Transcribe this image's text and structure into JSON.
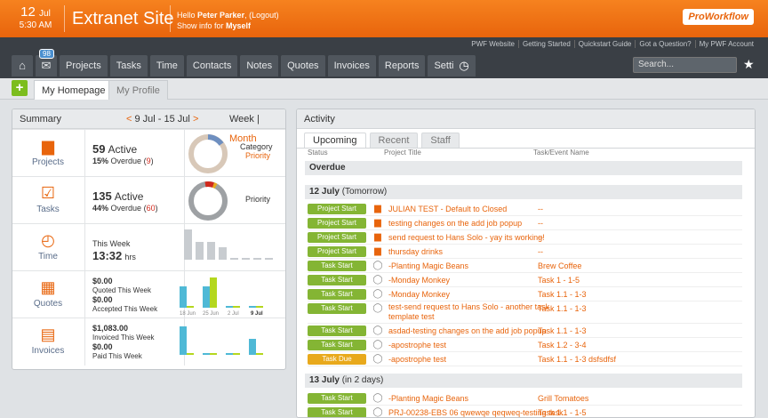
{
  "header": {
    "date_day": "12",
    "date_month": "Jul",
    "time": "5:30 AM",
    "site_title": "Extranet Site",
    "hello": "Hello",
    "user": "Peter Parker",
    "logout": "(Logout)",
    "show_info": "Show info for",
    "show_info_value": "Myself",
    "logo": "ProWorkflow"
  },
  "top_links": [
    "PWF Website",
    "Getting Started",
    "Quickstart Guide",
    "Got a Question?",
    "My PWF Account"
  ],
  "nav": {
    "home": "⌂",
    "mail_badge": "98",
    "items": [
      "Projects",
      "Tasks",
      "Time",
      "Contacts",
      "Notes",
      "Quotes",
      "Invoices",
      "Reports",
      "Settings"
    ],
    "search_placeholder": "Search..."
  },
  "subtabs": [
    "My Homepage",
    "My Profile"
  ],
  "summary": {
    "title": "Summary",
    "range": "9 Jul - 15 Jul",
    "prev": "<",
    "next": ">",
    "week": "Week",
    "month": "Month",
    "projects": {
      "label": "Projects",
      "count": "59",
      "active": "Active",
      "overdue_pct": "15%",
      "overdue_label": "Overdue",
      "overdue_count": "9",
      "donut_label1": "Category",
      "donut_label2": "Priority"
    },
    "tasks": {
      "label": "Tasks",
      "count": "135",
      "active": "Active",
      "overdue_pct": "44%",
      "overdue_label": "Overdue",
      "overdue_count": "60",
      "donut_label1": "Priority"
    },
    "time": {
      "label": "Time",
      "this_week": "This Week",
      "hours": "13:32",
      "unit": "hrs"
    },
    "quotes": {
      "label": "Quotes",
      "quoted": "$0.00",
      "quoted_label": "Quoted This Week",
      "accepted": "$0.00",
      "accepted_label": "Accepted This Week"
    },
    "invoices": {
      "label": "Invoices",
      "invoiced": "$1,083.00",
      "invoiced_label": "Invoiced This Week",
      "paid": "$0.00",
      "paid_label": "Paid This Week"
    },
    "week_labels": [
      "18 Jun",
      "25 Jun",
      "2 Jul",
      "9 Jul"
    ]
  },
  "activity": {
    "title": "Activity",
    "tabs": [
      "Upcoming",
      "Recent",
      "Staff"
    ],
    "cols": {
      "status": "Status",
      "project": "Project Title",
      "task": "Task/Event Name"
    },
    "overdue": "Overdue",
    "group1": "12 July",
    "group1_note": "(Tomorrow)",
    "rows1": [
      {
        "status": "Project Start",
        "type": "folder",
        "title": "JULIAN TEST - Default to Closed",
        "task": "--"
      },
      {
        "status": "Project Start",
        "type": "folder",
        "title": "testing changes on the add job popup",
        "task": "--"
      },
      {
        "status": "Project Start",
        "type": "folder",
        "title": "send request to Hans Solo - yay its working!",
        "task": "--"
      },
      {
        "status": "Project Start",
        "type": "folder",
        "title": "thursday drinks",
        "task": "--"
      },
      {
        "status": "Task Start",
        "type": "circle",
        "title": "-Planting Magic Beans",
        "task": "Brew Coffee"
      },
      {
        "status": "Task Start",
        "type": "circle",
        "title": "-Monday Monkey",
        "task": "Task 1 - 1-5"
      },
      {
        "status": "Task Start",
        "type": "circle",
        "title": "-Monday Monkey",
        "task": "Task 1.1 - 1-3"
      },
      {
        "status": "Task Start",
        "type": "circle",
        "title": "test-send request to Hans Solo - another task",
        "title2": "template test",
        "task": "Task 1.1 - 1-3"
      },
      {
        "status": "Task Start",
        "type": "circle",
        "title": "asdad-testing changes on the add job popup",
        "task": "Task 1.1 - 1-3"
      },
      {
        "status": "Task Start",
        "type": "circle",
        "title": "-apostrophe test",
        "task": "Task 1.2 - 3-4"
      },
      {
        "status": "Task Due",
        "type": "circle",
        "title": "-apostrophe test",
        "task": "Task 1.1 - 1-3 dsfsdfsf"
      }
    ],
    "group2": "13 July",
    "group2_note": "(in 2 days)",
    "rows2": [
      {
        "status": "Task Start",
        "type": "circle",
        "title": "-Planting Magic Beans",
        "task": "Grill Tomatoes"
      },
      {
        "status": "Task Start",
        "type": "circle",
        "title": "PRJ-00238-EBS 06 qwewqe qeqweq-testing task",
        "task": "Task 1.1 - 1-5"
      }
    ]
  }
}
